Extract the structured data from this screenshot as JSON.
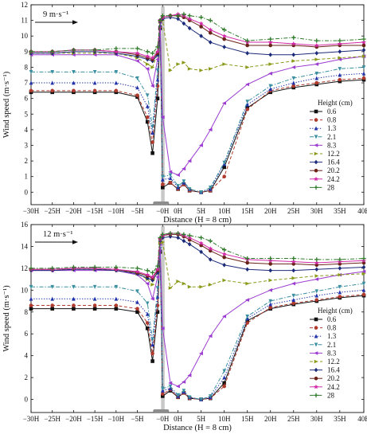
{
  "chart_data": [
    {
      "type": "line",
      "annotation": "9 m·s⁻¹",
      "xlabel": "Distance (H = 8 cm)",
      "ylabel": "Wind speed (m·s⁻¹)",
      "ylim": [
        -0.8,
        12
      ],
      "yticks": [
        0,
        1,
        2,
        3,
        4,
        5,
        6,
        7,
        8,
        9,
        10,
        11,
        12
      ],
      "x_ticks": [
        {
          "x": -30,
          "label": "−30H"
        },
        {
          "x": -25,
          "label": "−25H"
        },
        {
          "x": -20,
          "label": "−20H"
        },
        {
          "x": -15,
          "label": "−15H"
        },
        {
          "x": -10,
          "label": "−10H"
        },
        {
          "x": -5,
          "label": "−5H"
        },
        {
          "x": 0,
          "label": "−0H"
        },
        {
          "x": 1,
          "label": "0H"
        },
        {
          "x": 5,
          "label": "5H"
        },
        {
          "x": 10,
          "label": "10H"
        },
        {
          "x": 15,
          "label": "15H"
        },
        {
          "x": 20,
          "label": "20H"
        },
        {
          "x": 25,
          "label": "25H"
        },
        {
          "x": 30,
          "label": "30H"
        },
        {
          "x": 35,
          "label": "35H"
        },
        {
          "x": 40,
          "label": "40H"
        }
      ],
      "x": [
        -30,
        -25,
        -20,
        -15,
        -10,
        -5,
        -3,
        -2,
        -1,
        -0.5,
        0,
        0.5,
        1,
        2,
        3,
        5,
        7,
        10,
        15,
        20,
        25,
        30,
        35,
        40
      ],
      "legend_title": "Height (cm)",
      "series": [
        {
          "name": "0.6",
          "color": "#111111",
          "marker": "square",
          "dash": "solid",
          "values": [
            6.4,
            6.4,
            6.4,
            6.4,
            6.4,
            6.1,
            4.5,
            2.5,
            6.0,
            10.5,
            0.3,
            0.6,
            0.2,
            0.5,
            0.1,
            0.0,
            0.1,
            1.6,
            5.4,
            6.4,
            6.7,
            6.9,
            7.1,
            7.2
          ]
        },
        {
          "name": "0.8",
          "color": "#b03a2e",
          "marker": "circle",
          "dash": "dashed",
          "values": [
            6.5,
            6.5,
            6.5,
            6.5,
            6.5,
            6.2,
            4.8,
            3.2,
            6.8,
            10.6,
            0.5,
            0.6,
            0.2,
            0.5,
            0.1,
            0.0,
            0.1,
            1.0,
            5.3,
            6.5,
            6.8,
            7.0,
            7.2,
            7.3
          ]
        },
        {
          "name": "1.3",
          "color": "#2233aa",
          "marker": "triangle-up",
          "dash": "dotted",
          "values": [
            7.0,
            7.0,
            7.0,
            7.0,
            7.0,
            6.7,
            5.5,
            3.8,
            7.2,
            10.7,
            0.8,
            0.9,
            0.3,
            0.6,
            0.2,
            0.0,
            0.2,
            1.8,
            5.6,
            6.6,
            7.0,
            7.3,
            7.5,
            7.6
          ]
        },
        {
          "name": "2.1",
          "color": "#3a8fa0",
          "marker": "triangle-down",
          "dash": "dashdot",
          "values": [
            7.7,
            7.7,
            7.7,
            7.7,
            7.7,
            7.3,
            6.2,
            4.2,
            7.8,
            10.8,
            1.0,
            1.1,
            0.4,
            0.7,
            0.2,
            0.0,
            0.3,
            1.9,
            5.8,
            6.8,
            7.3,
            7.6,
            7.9,
            8.0
          ]
        },
        {
          "name": "8.3",
          "color": "#9b3bd0",
          "marker": "triangle-left",
          "dash": "solid",
          "values": [
            8.8,
            8.8,
            8.8,
            8.8,
            8.8,
            8.4,
            7.9,
            6.8,
            8.5,
            10.9,
            4.8,
            1.3,
            1.1,
            1.5,
            2.0,
            3.0,
            4.0,
            5.7,
            6.9,
            7.6,
            8.0,
            8.2,
            8.5,
            8.7
          ]
        },
        {
          "name": "12.2",
          "color": "#8a9a18",
          "marker": "triangle-right",
          "dash": "dashed",
          "values": [
            8.9,
            8.9,
            8.9,
            8.9,
            8.9,
            8.6,
            8.2,
            8.0,
            8.9,
            10.9,
            11.0,
            7.8,
            8.2,
            8.3,
            7.9,
            7.8,
            7.9,
            8.2,
            8.0,
            8.2,
            8.4,
            8.5,
            8.6,
            8.7
          ]
        },
        {
          "name": "16.4",
          "color": "#1c2a7a",
          "marker": "diamond",
          "dash": "solid",
          "values": [
            8.9,
            8.9,
            9.0,
            9.0,
            8.9,
            8.7,
            8.5,
            8.4,
            8.8,
            10.9,
            11.1,
            11.2,
            11.1,
            10.8,
            10.5,
            10.0,
            9.6,
            9.3,
            8.9,
            8.8,
            8.8,
            8.9,
            9.0,
            9.1
          ]
        },
        {
          "name": "20.2",
          "color": "#6a2318",
          "marker": "circle",
          "dash": "solid",
          "values": [
            9.0,
            9.0,
            9.1,
            9.1,
            9.0,
            8.8,
            8.6,
            8.5,
            8.9,
            11.0,
            11.2,
            11.3,
            11.3,
            11.2,
            11.0,
            10.6,
            10.2,
            9.8,
            9.4,
            9.4,
            9.4,
            9.3,
            9.4,
            9.4
          ]
        },
        {
          "name": "24.2",
          "color": "#d22aa8",
          "marker": "star",
          "dash": "solid",
          "values": [
            9.0,
            9.0,
            9.1,
            9.1,
            9.0,
            8.9,
            8.7,
            8.6,
            9.0,
            11.0,
            11.2,
            11.3,
            11.4,
            11.3,
            11.1,
            10.8,
            10.4,
            10.0,
            9.6,
            9.6,
            9.5,
            9.4,
            9.5,
            9.6
          ]
        },
        {
          "name": "28",
          "color": "#2f7a2a",
          "marker": "plus",
          "dash": "dashdot",
          "values": [
            9.0,
            9.0,
            9.1,
            9.1,
            9.2,
            9.2,
            9.0,
            8.9,
            9.3,
            11.0,
            11.3,
            11.3,
            11.3,
            11.4,
            11.3,
            11.2,
            11.0,
            10.4,
            9.7,
            9.8,
            9.9,
            9.7,
            9.7,
            9.8
          ]
        }
      ]
    },
    {
      "type": "line",
      "annotation": "12 m·s⁻¹",
      "xlabel": "Distance (H = 8 cm)",
      "ylabel": "Wind speed (m·s⁻¹)",
      "ylim": [
        -1.2,
        16
      ],
      "yticks": [
        0,
        2,
        4,
        6,
        8,
        10,
        12,
        14,
        16
      ],
      "x_ticks": [
        {
          "x": -30,
          "label": "−30H"
        },
        {
          "x": -25,
          "label": "−25H"
        },
        {
          "x": -20,
          "label": "−20H"
        },
        {
          "x": -15,
          "label": "−15H"
        },
        {
          "x": -10,
          "label": "−10H"
        },
        {
          "x": -5,
          "label": "−5H"
        },
        {
          "x": 0,
          "label": "−0H"
        },
        {
          "x": 1,
          "label": "0H"
        },
        {
          "x": 5,
          "label": "5H"
        },
        {
          "x": 10,
          "label": "10H"
        },
        {
          "x": 15,
          "label": "15H"
        },
        {
          "x": 20,
          "label": "20H"
        },
        {
          "x": 25,
          "label": "25H"
        },
        {
          "x": 30,
          "label": "30H"
        },
        {
          "x": 35,
          "label": "35H"
        },
        {
          "x": 40,
          "label": "40H"
        }
      ],
      "x": [
        -30,
        -25,
        -20,
        -15,
        -10,
        -5,
        -3,
        -2,
        -1,
        -0.5,
        0,
        0.5,
        1,
        2,
        3,
        5,
        7,
        10,
        15,
        20,
        25,
        30,
        35,
        40
      ],
      "legend_title": "Height (cm)",
      "series": [
        {
          "name": "0.6",
          "color": "#111111",
          "marker": "square",
          "dash": "solid",
          "values": [
            8.3,
            8.3,
            8.3,
            8.3,
            8.3,
            8.0,
            6.5,
            3.5,
            8.0,
            13.5,
            0.3,
            0.8,
            0.2,
            0.6,
            0.1,
            0.0,
            0.1,
            1.5,
            7.2,
            8.3,
            8.7,
            9.0,
            9.3,
            9.5
          ]
        },
        {
          "name": "0.8",
          "color": "#b03a2e",
          "marker": "circle",
          "dash": "dashed",
          "values": [
            8.6,
            8.6,
            8.6,
            8.6,
            8.6,
            8.3,
            7.0,
            4.2,
            8.6,
            13.6,
            0.5,
            0.9,
            0.2,
            0.6,
            0.1,
            0.0,
            0.1,
            1.2,
            7.0,
            8.4,
            8.8,
            9.1,
            9.4,
            9.6
          ]
        },
        {
          "name": "1.3",
          "color": "#2233aa",
          "marker": "triangle-up",
          "dash": "dotted",
          "values": [
            9.2,
            9.2,
            9.2,
            9.2,
            9.2,
            8.9,
            7.8,
            5.0,
            9.4,
            13.7,
            0.8,
            1.0,
            0.3,
            0.7,
            0.2,
            0.0,
            0.2,
            2.0,
            7.4,
            8.7,
            9.1,
            9.5,
            9.8,
            10.0
          ]
        },
        {
          "name": "2.1",
          "color": "#3a8fa0",
          "marker": "triangle-down",
          "dash": "dashdot",
          "values": [
            10.3,
            10.3,
            10.3,
            10.3,
            10.3,
            9.9,
            8.8,
            5.5,
            10.2,
            13.8,
            1.0,
            1.2,
            0.4,
            0.8,
            0.2,
            0.0,
            0.3,
            2.6,
            7.6,
            9.0,
            9.5,
            9.9,
            10.3,
            10.6
          ]
        },
        {
          "name": "8.3",
          "color": "#9b3bd0",
          "marker": "triangle-left",
          "dash": "solid",
          "values": [
            11.8,
            11.8,
            11.8,
            11.8,
            11.8,
            11.4,
            10.6,
            9.2,
            11.2,
            14.2,
            6.5,
            1.5,
            1.2,
            1.6,
            2.2,
            4.2,
            5.8,
            7.6,
            9.1,
            10.0,
            10.6,
            11.0,
            11.4,
            11.7
          ]
        },
        {
          "name": "12.2",
          "color": "#8a9a18",
          "marker": "triangle-right",
          "dash": "dashed",
          "values": [
            11.9,
            11.9,
            11.9,
            11.9,
            11.9,
            11.5,
            11.0,
            10.5,
            11.8,
            14.3,
            14.4,
            10.2,
            10.8,
            10.6,
            10.3,
            10.3,
            10.5,
            10.9,
            10.6,
            10.9,
            11.1,
            11.3,
            11.4,
            11.5
          ]
        },
        {
          "name": "16.4",
          "color": "#1c2a7a",
          "marker": "diamond",
          "dash": "solid",
          "values": [
            11.8,
            11.8,
            11.9,
            11.9,
            11.8,
            11.5,
            11.1,
            10.9,
            11.6,
            14.5,
            14.8,
            14.9,
            14.8,
            14.5,
            14.2,
            13.5,
            12.8,
            12.3,
            11.9,
            11.8,
            11.8,
            11.9,
            12.0,
            12.1
          ]
        },
        {
          "name": "20.2",
          "color": "#6a2318",
          "marker": "circle",
          "dash": "solid",
          "values": [
            11.9,
            11.9,
            12.0,
            12.0,
            11.9,
            11.6,
            11.3,
            11.1,
            11.8,
            14.7,
            15.0,
            15.1,
            15.1,
            14.9,
            14.6,
            14.1,
            13.6,
            13.0,
            12.5,
            12.4,
            12.4,
            12.3,
            12.4,
            12.5
          ]
        },
        {
          "name": "24.2",
          "color": "#d22aa8",
          "marker": "star",
          "dash": "solid",
          "values": [
            11.9,
            11.9,
            12.0,
            12.0,
            11.9,
            11.7,
            11.4,
            11.2,
            11.9,
            14.7,
            15.0,
            15.2,
            15.2,
            15.0,
            14.8,
            14.3,
            13.8,
            13.3,
            12.8,
            12.7,
            12.6,
            12.5,
            12.6,
            12.7
          ]
        },
        {
          "name": "28",
          "color": "#2f7a2a",
          "marker": "plus",
          "dash": "dashdot",
          "values": [
            12.0,
            12.0,
            12.1,
            12.1,
            12.1,
            12.0,
            11.8,
            11.6,
            12.2,
            14.8,
            15.1,
            15.2,
            15.2,
            15.1,
            15.0,
            14.8,
            14.5,
            13.7,
            12.9,
            12.9,
            12.9,
            12.8,
            12.8,
            12.9
          ]
        }
      ]
    }
  ]
}
